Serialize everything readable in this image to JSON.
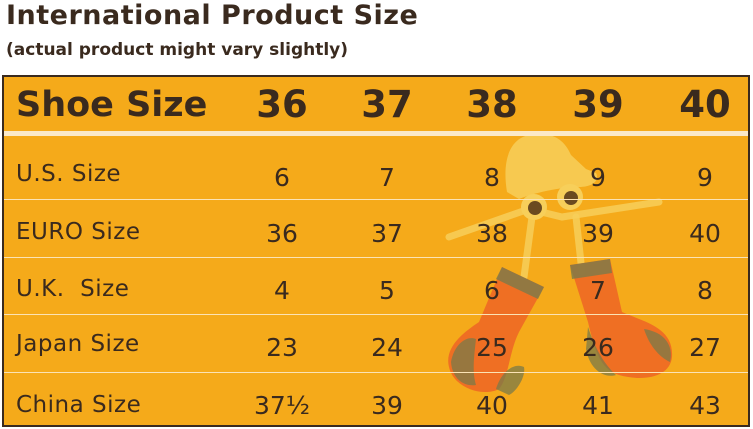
{
  "title": "International Product Size",
  "subtitle": "(actual product might vary slightly)",
  "table": {
    "header": {
      "label": "Shoe Size",
      "sizes": [
        "36",
        "37",
        "38",
        "39",
        "40"
      ]
    },
    "rows": [
      {
        "label": "U.S. Size",
        "values": [
          "6",
          "7",
          "8",
          "9",
          "9"
        ]
      },
      {
        "label": "EURO Size",
        "values": [
          "36",
          "37",
          "38",
          "39",
          "40"
        ]
      },
      {
        "label": "U.K.  Size",
        "values": [
          "4",
          "5",
          "6",
          "7",
          "8"
        ]
      },
      {
        "label": "Japan Size",
        "values": [
          "23",
          "24",
          "25",
          "26",
          "27"
        ]
      },
      {
        "label": "China Size",
        "values": [
          "37½",
          "39",
          "40",
          "41",
          "43"
        ]
      }
    ]
  },
  "colors": {
    "background": "#f5aa1a",
    "text": "#3a2a1e",
    "sock": "#ee6a24",
    "sock_heel": "#7a7a4a",
    "mascot_head": "#f7cf5a"
  },
  "icons": [
    "sock-mascot-icon"
  ]
}
